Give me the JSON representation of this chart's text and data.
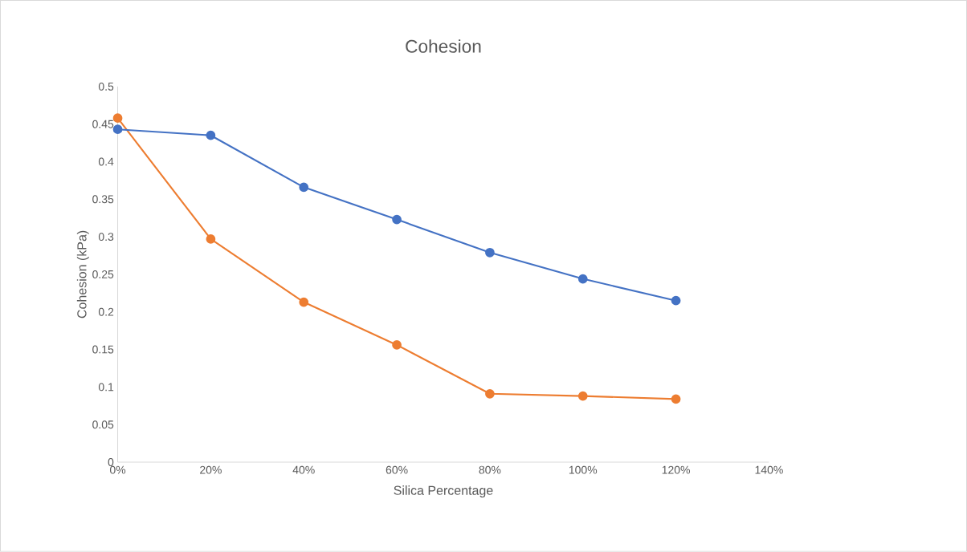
{
  "chart_data": {
    "type": "line",
    "title": "Cohesion",
    "xlabel": "Silica Percentage",
    "ylabel": "Cohesion (kPa)",
    "x": [
      0,
      20,
      40,
      60,
      80,
      100,
      120
    ],
    "series": [
      {
        "color": "#ed7d31",
        "values": [
          0.458,
          0.297,
          0.213,
          0.156,
          0.091,
          0.088,
          0.084
        ]
      },
      {
        "color": "#4472c4",
        "values": [
          0.443,
          0.435,
          0.366,
          0.323,
          0.279,
          0.244,
          0.215
        ]
      }
    ],
    "xlim": [
      0,
      140
    ],
    "ylim": [
      0,
      0.5
    ],
    "xticks": [
      {
        "value": 0,
        "label": "0%"
      },
      {
        "value": 20,
        "label": "20%"
      },
      {
        "value": 40,
        "label": "40%"
      },
      {
        "value": 60,
        "label": "60%"
      },
      {
        "value": 80,
        "label": "80%"
      },
      {
        "value": 100,
        "label": "100%"
      },
      {
        "value": 120,
        "label": "120%"
      },
      {
        "value": 140,
        "label": "140%"
      }
    ],
    "yticks": [
      0,
      0.05,
      0.1,
      0.15,
      0.2,
      0.25,
      0.3,
      0.35,
      0.4,
      0.45,
      0.5
    ],
    "marker": "circle",
    "line_style": "solid"
  }
}
